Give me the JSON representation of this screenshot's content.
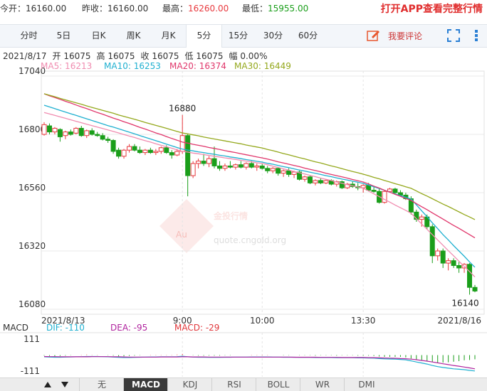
{
  "quote": [
    {
      "label": "今开：",
      "value": "16160.00"
    },
    {
      "label": "昨收：",
      "value": "16160.00"
    },
    {
      "label": "最高：",
      "value": "16260.00"
    },
    {
      "label": "最低：",
      "value": "15955.00"
    }
  ],
  "app_link": "打开APP查看完整行情",
  "tabs": [
    "分时",
    "5日",
    "日K",
    "周K",
    "月K",
    "5分",
    "15分",
    "30分",
    "60分"
  ],
  "comment": "我要评论",
  "info": [
    "2021/8/17",
    "开 16075",
    "高 16075",
    "收 16075",
    "低 16075",
    "幅 0.00%"
  ],
  "watermark": {
    "logo": "Au",
    "name": "金投行情",
    "site": "quote.cngold.org"
  },
  "indicator_tabs": [
    "无",
    "MACD",
    "KDJ",
    "RSI",
    "BOLL",
    "WR",
    "DMI"
  ],
  "chart_data": [
    {
      "type": "candlestick",
      "up_color": "#e8383d",
      "down_color": "#1a9e1a",
      "ylim": [
        16080,
        17040
      ],
      "yticks": [
        16080,
        16320,
        16560,
        16800,
        17040
      ],
      "grid": true,
      "categories": [
        "2021/8/13",
        null,
        null,
        null,
        null,
        null,
        null,
        null,
        null,
        null,
        null,
        null,
        null,
        null,
        null,
        null,
        null,
        null,
        null,
        null,
        null,
        null,
        null,
        null,
        null,
        null,
        "9:00",
        null,
        null,
        null,
        null,
        null,
        null,
        null,
        null,
        null,
        null,
        null,
        null,
        null,
        null,
        "10:00",
        null,
        null,
        null,
        null,
        null,
        null,
        null,
        null,
        null,
        null,
        null,
        null,
        null,
        null,
        null,
        null,
        null,
        null,
        "13:30",
        null,
        null,
        null,
        null,
        null,
        null,
        null,
        null,
        null,
        null,
        null,
        null,
        null,
        null,
        null,
        null,
        null,
        null,
        null,
        null,
        "2021/8/16"
      ],
      "open": [
        16800,
        16835,
        16810,
        16820,
        16795,
        16810,
        16805,
        16825,
        16795,
        16815,
        16800,
        16795,
        16780,
        16775,
        16735,
        16710,
        16735,
        16750,
        16735,
        16725,
        16735,
        16725,
        16730,
        16745,
        16725,
        16715,
        16730,
        16795,
        16630,
        16680,
        16690,
        16680,
        16700,
        16670,
        16660,
        16670,
        16665,
        16675,
        16665,
        16680,
        16665,
        16670,
        16660,
        16650,
        16660,
        16640,
        16650,
        16635,
        16645,
        16615,
        16625,
        16600,
        16610,
        16600,
        16610,
        16595,
        16605,
        16580,
        16595,
        16585,
        16580,
        16590,
        16570,
        16565,
        16520,
        16565,
        16575,
        16560,
        16550,
        16535,
        16480,
        16450,
        16460,
        16420,
        16300,
        16320,
        16270,
        16280,
        16260,
        16250,
        16265,
        16170
      ],
      "high": [
        16850,
        16845,
        16830,
        16825,
        16815,
        16820,
        16830,
        16835,
        16820,
        16825,
        16810,
        16805,
        16790,
        16780,
        16745,
        16740,
        16760,
        16760,
        16750,
        16740,
        16745,
        16740,
        16750,
        16755,
        16735,
        16740,
        16880,
        16800,
        16690,
        16700,
        16720,
        16710,
        16750,
        16690,
        16680,
        16690,
        16680,
        16690,
        16685,
        16690,
        16680,
        16680,
        16670,
        16665,
        16665,
        16655,
        16660,
        16650,
        16650,
        16630,
        16630,
        16615,
        16620,
        16615,
        16615,
        16610,
        16610,
        16600,
        16605,
        16600,
        16595,
        16600,
        16585,
        16575,
        16570,
        16580,
        16580,
        16570,
        16560,
        16545,
        16490,
        16470,
        16470,
        16430,
        16330,
        16330,
        16290,
        16290,
        16275,
        16270,
        16270,
        16180
      ],
      "low": [
        16795,
        16800,
        16800,
        16770,
        16780,
        16795,
        16800,
        16790,
        16785,
        16795,
        16790,
        16775,
        16765,
        16720,
        16700,
        16700,
        16725,
        16730,
        16720,
        16715,
        16720,
        16715,
        16720,
        16720,
        16700,
        16710,
        16720,
        16545,
        16620,
        16660,
        16670,
        16665,
        16660,
        16650,
        16650,
        16660,
        16655,
        16660,
        16655,
        16660,
        16650,
        16655,
        16640,
        16640,
        16630,
        16625,
        16625,
        16620,
        16610,
        16605,
        16595,
        16590,
        16595,
        16595,
        16590,
        16585,
        16575,
        16575,
        16580,
        16570,
        16560,
        16565,
        16560,
        16515,
        16515,
        16560,
        16555,
        16545,
        16530,
        16470,
        16440,
        16420,
        16410,
        16270,
        16280,
        16250,
        16240,
        16250,
        16230,
        16230,
        16140,
        16150
      ],
      "close": [
        16840,
        16810,
        16825,
        16790,
        16810,
        16800,
        16825,
        16795,
        16815,
        16800,
        16795,
        16780,
        16775,
        16730,
        16710,
        16735,
        16750,
        16735,
        16725,
        16735,
        16725,
        16730,
        16745,
        16725,
        16715,
        16730,
        16795,
        16630,
        16680,
        16690,
        16680,
        16700,
        16670,
        16660,
        16670,
        16665,
        16675,
        16665,
        16680,
        16665,
        16670,
        16660,
        16650,
        16660,
        16640,
        16650,
        16635,
        16645,
        16615,
        16625,
        16600,
        16610,
        16600,
        16610,
        16595,
        16605,
        16580,
        16595,
        16585,
        16580,
        16590,
        16570,
        16565,
        16520,
        16565,
        16575,
        16560,
        16550,
        16535,
        16480,
        16450,
        16460,
        16420,
        16300,
        16320,
        16270,
        16280,
        16260,
        16250,
        16265,
        16170,
        16155
      ],
      "annotations": [
        {
          "value": 16880
        },
        {
          "value": 16140
        }
      ],
      "series": [
        {
          "label": "MA5: 16213",
          "color": "#f08cb0",
          "values": [
            16890,
            16884,
            16878,
            16872,
            16866,
            16860,
            16854,
            16848,
            16842,
            16836,
            16830,
            16824,
            16818,
            16812,
            16806,
            16799,
            16793,
            16787,
            16780,
            16774,
            16768,
            16761,
            16755,
            16749,
            16743,
            16736,
            16730,
            16727,
            16723,
            16720,
            16717,
            16713,
            16710,
            16707,
            16703,
            16700,
            16697,
            16693,
            16690,
            16687,
            16683,
            16680,
            16675,
            16669,
            16664,
            16658,
            16653,
            16647,
            16642,
            16637,
            16631,
            16626,
            16620,
            16615,
            16610,
            16604,
            16599,
            16593,
            16588,
            16583,
            16578,
            16567,
            16555,
            16544,
            16532,
            16521,
            16509,
            16498,
            16487,
            16475,
            16453,
            16431,
            16409,
            16387,
            16365,
            16343,
            16321,
            16300,
            16278,
            16256,
            16235,
            16213
          ]
        },
        {
          "label": "MA10: 16253",
          "color": "#1fb0d0",
          "values": [
            16920,
            16913,
            16906,
            16899,
            16892,
            16885,
            16878,
            16871,
            16864,
            16857,
            16850,
            16843,
            16836,
            16830,
            16823,
            16816,
            16809,
            16802,
            16795,
            16788,
            16781,
            16774,
            16767,
            16760,
            16753,
            16746,
            16739,
            16735,
            16732,
            16728,
            16725,
            16721,
            16718,
            16714,
            16711,
            16707,
            16704,
            16700,
            16696,
            16693,
            16689,
            16686,
            16681,
            16677,
            16672,
            16667,
            16663,
            16658,
            16653,
            16649,
            16644,
            16640,
            16635,
            16630,
            16626,
            16621,
            16616,
            16612,
            16607,
            16603,
            16598,
            16591,
            16584,
            16577,
            16570,
            16562,
            16555,
            16548,
            16541,
            16534,
            16510,
            16485,
            16461,
            16436,
            16412,
            16387,
            16365,
            16342,
            16320,
            16298,
            16275,
            16253
          ]
        },
        {
          "label": "MA20: 16374",
          "color": "#e0366b",
          "values": [
            16967,
            16959,
            16952,
            16944,
            16936,
            16929,
            16921,
            16913,
            16906,
            16898,
            16890,
            16883,
            16875,
            16867,
            16860,
            16852,
            16845,
            16837,
            16829,
            16822,
            16814,
            16806,
            16799,
            16791,
            16783,
            16776,
            16768,
            16764,
            16759,
            16755,
            16751,
            16746,
            16742,
            16738,
            16733,
            16729,
            16725,
            16720,
            16716,
            16712,
            16707,
            16703,
            16698,
            16693,
            16687,
            16682,
            16677,
            16672,
            16667,
            16661,
            16656,
            16651,
            16646,
            16640,
            16635,
            16630,
            16625,
            16620,
            16614,
            16609,
            16604,
            16596,
            16587,
            16579,
            16570,
            16562,
            16553,
            16545,
            16536,
            16528,
            16515,
            16502,
            16490,
            16477,
            16464,
            16451,
            16438,
            16425,
            16413,
            16400,
            16387,
            16374
          ]
        },
        {
          "label": "MA30: 16449",
          "color": "#94a81c",
          "values": [
            16967,
            16961,
            16955,
            16948,
            16942,
            16936,
            16930,
            16924,
            16917,
            16911,
            16905,
            16899,
            16893,
            16887,
            16880,
            16874,
            16868,
            16862,
            16856,
            16849,
            16843,
            16837,
            16831,
            16825,
            16818,
            16812,
            16806,
            16802,
            16798,
            16794,
            16789,
            16785,
            16781,
            16777,
            16773,
            16769,
            16765,
            16761,
            16756,
            16752,
            16748,
            16744,
            16738,
            16733,
            16727,
            16721,
            16716,
            16710,
            16704,
            16699,
            16693,
            16687,
            16682,
            16676,
            16670,
            16665,
            16659,
            16653,
            16647,
            16642,
            16636,
            16630,
            16623,
            16617,
            16610,
            16604,
            16597,
            16591,
            16584,
            16578,
            16567,
            16556,
            16546,
            16535,
            16524,
            16513,
            16503,
            16492,
            16481,
            16470,
            16460,
            16449
          ]
        }
      ]
    },
    {
      "type": "macd",
      "title": "MACD",
      "ylim": [
        -111,
        111
      ],
      "yticks": [
        111,
        -111
      ],
      "series": [
        {
          "label": "DIF: -110",
          "color": "#1fb0d0",
          "values": [
            -12,
            -14,
            -15,
            -15,
            -14,
            -13,
            -12,
            -11,
            -10,
            -10,
            -10,
            -11,
            -12,
            -14,
            -16,
            -17,
            -17,
            -16,
            -15,
            -14,
            -13,
            -13,
            -12,
            -12,
            -12,
            -11,
            -8,
            -12,
            -14,
            -15,
            -15,
            -16,
            -16,
            -16,
            -15,
            -15,
            -14,
            -14,
            -14,
            -13,
            -13,
            -13,
            -13,
            -14,
            -14,
            -15,
            -15,
            -15,
            -16,
            -16,
            -16,
            -17,
            -17,
            -17,
            -17,
            -18,
            -18,
            -18,
            -18,
            -19,
            -19,
            -20,
            -21,
            -24,
            -26,
            -27,
            -28,
            -30,
            -33,
            -40,
            -48,
            -55,
            -62,
            -72,
            -80,
            -86,
            -91,
            -95,
            -98,
            -101,
            -106,
            -110
          ]
        },
        {
          "label": "DEA: -95",
          "color": "#b0239e",
          "values": [
            -10,
            -11,
            -11,
            -12,
            -12,
            -12,
            -12,
            -12,
            -12,
            -11,
            -11,
            -11,
            -11,
            -12,
            -12,
            -13,
            -14,
            -14,
            -14,
            -14,
            -14,
            -14,
            -13,
            -13,
            -13,
            -13,
            -12,
            -12,
            -13,
            -13,
            -13,
            -14,
            -14,
            -14,
            -14,
            -14,
            -14,
            -14,
            -14,
            -14,
            -14,
            -14,
            -14,
            -14,
            -14,
            -14,
            -14,
            -15,
            -15,
            -15,
            -15,
            -15,
            -16,
            -16,
            -16,
            -16,
            -17,
            -17,
            -17,
            -17,
            -17,
            -18,
            -18,
            -19,
            -20,
            -21,
            -22,
            -24,
            -25,
            -28,
            -32,
            -37,
            -42,
            -48,
            -54,
            -60,
            -66,
            -72,
            -77,
            -83,
            -89,
            -95
          ]
        }
      ],
      "histogram": {
        "label": "MACD: -29",
        "color": "#e0363a",
        "up_color": "#e8383d",
        "down_color": "#1a9e1a",
        "values": [
          -4,
          -6,
          -8,
          -6,
          -4,
          -2,
          0,
          2,
          4,
          2,
          2,
          0,
          -2,
          -4,
          -8,
          -8,
          -6,
          -4,
          -2,
          0,
          2,
          2,
          2,
          2,
          2,
          4,
          8,
          0,
          -2,
          -4,
          -4,
          -4,
          -4,
          -4,
          -2,
          -2,
          0,
          0,
          0,
          2,
          2,
          2,
          2,
          0,
          0,
          -2,
          -2,
          0,
          -2,
          -2,
          -2,
          -4,
          -2,
          -2,
          -2,
          -4,
          -2,
          -2,
          -2,
          -4,
          -4,
          -4,
          -6,
          -10,
          -12,
          -12,
          -12,
          -12,
          -16,
          -24,
          -32,
          -36,
          -40,
          -48,
          -52,
          -52,
          -50,
          -46,
          -42,
          -36,
          -34,
          -29
        ]
      }
    }
  ]
}
